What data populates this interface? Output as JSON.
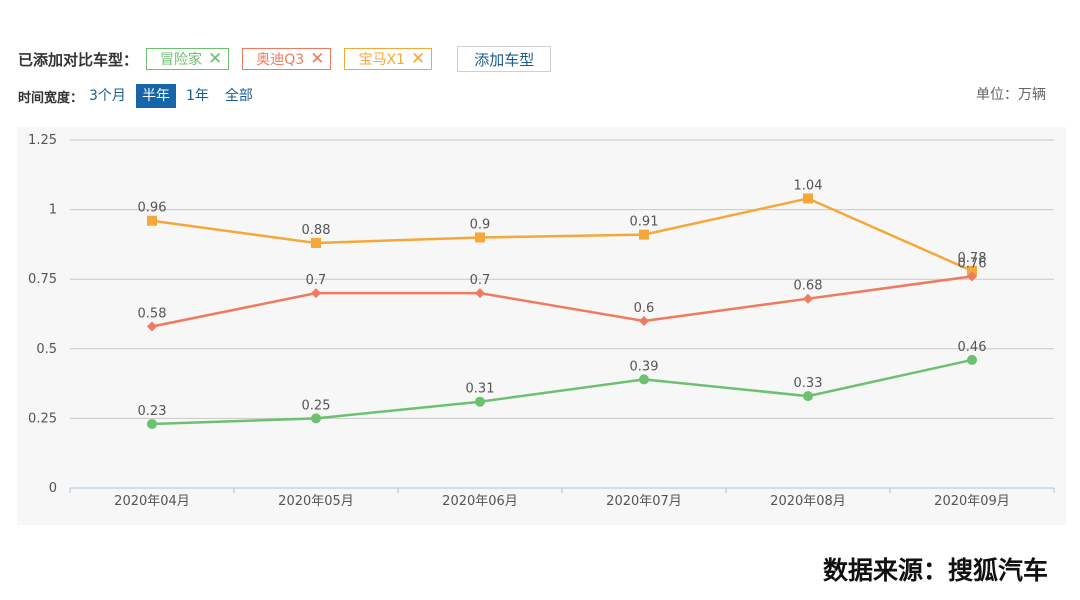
{
  "header": {
    "added_label": "已添加对比车型：",
    "models": [
      {
        "name": "冒险家",
        "color": "#6cc070"
      },
      {
        "name": "奥迪Q3",
        "color": "#f07a5e"
      },
      {
        "name": "宝马X1",
        "color": "#f5a83a"
      }
    ],
    "add_button": "添加车型"
  },
  "time_range": {
    "label": "时间宽度：",
    "options": [
      "3个月",
      "半年",
      "1年",
      "全部"
    ],
    "active": "半年"
  },
  "unit": "单位：万辆",
  "source": "数据来源：搜狐汽车",
  "chart_data": {
    "type": "line",
    "categories": [
      "2020年04月",
      "2020年05月",
      "2020年06月",
      "2020年07月",
      "2020年08月",
      "2020年09月"
    ],
    "ylim": [
      0,
      1.25
    ],
    "yticks": [
      "0",
      "0.25",
      "0.5",
      "0.75",
      "1",
      "1.25"
    ],
    "grid": true,
    "series": [
      {
        "name": "宝马X1",
        "color": "#f5a83a",
        "marker": "square",
        "values": [
          0.96,
          0.88,
          0.9,
          0.91,
          1.04,
          0.78
        ]
      },
      {
        "name": "奥迪Q3",
        "color": "#f07a5e",
        "marker": "diamond",
        "values": [
          0.58,
          0.7,
          0.7,
          0.6,
          0.68,
          0.76
        ]
      },
      {
        "name": "冒险家",
        "color": "#6cc070",
        "marker": "circle",
        "values": [
          0.23,
          0.25,
          0.31,
          0.39,
          0.33,
          0.46
        ]
      }
    ]
  }
}
